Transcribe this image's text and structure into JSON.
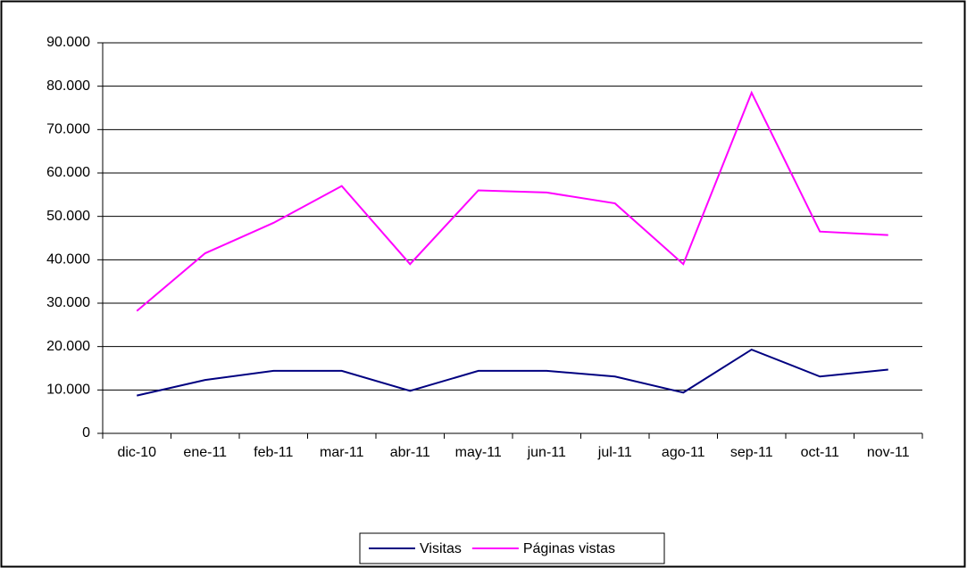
{
  "chart_data": {
    "type": "line",
    "categories": [
      "dic-10",
      "ene-11",
      "feb-11",
      "mar-11",
      "abr-11",
      "may-11",
      "jun-11",
      "jul-11",
      "ago-11",
      "sep-11",
      "oct-11",
      "nov-11"
    ],
    "series": [
      {
        "name": "Visitas",
        "color": "#000080",
        "values": [
          8700,
          12300,
          14400,
          14400,
          9800,
          14400,
          14400,
          13100,
          9400,
          19300,
          13100,
          14700
        ]
      },
      {
        "name": "Páginas vistas",
        "color": "#ff00ff",
        "values": [
          28200,
          41500,
          48500,
          57000,
          39000,
          56000,
          55500,
          53000,
          39000,
          78500,
          46500,
          45700
        ]
      }
    ],
    "ylim": [
      0,
      90000
    ],
    "yticks": [
      0,
      {
        "value": 10000,
        "label": "10.000"
      },
      {
        "value": 20000,
        "label": "20.000"
      },
      {
        "value": 30000,
        "label": "30.000"
      },
      {
        "value": 40000,
        "label": "40.000"
      },
      {
        "value": 50000,
        "label": "50.000"
      },
      {
        "value": 60000,
        "label": "60.000"
      },
      {
        "value": 70000,
        "label": "70.000"
      },
      {
        "value": 80000,
        "label": "80.000"
      },
      {
        "value": 90000,
        "label": "90.000"
      }
    ],
    "grid": true,
    "legend": "bottom"
  }
}
